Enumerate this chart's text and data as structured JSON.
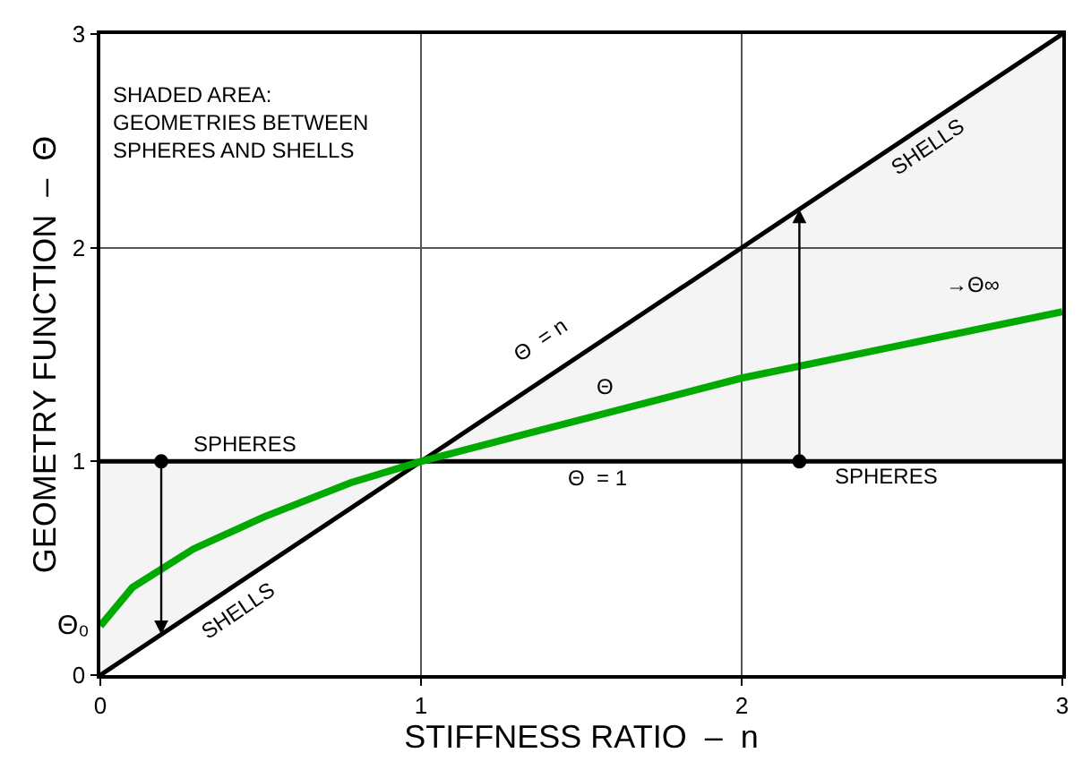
{
  "chart_data": {
    "type": "line",
    "xlabel": "STIFFNESS RATIO  –  n",
    "ylabel": "GEOMETRY FUNCTION  –  Θ",
    "xlim": [
      0,
      3
    ],
    "ylim": [
      0,
      3
    ],
    "xticks": [
      0,
      1,
      2,
      3
    ],
    "yticks": [
      0,
      1,
      2,
      3
    ],
    "grid": true,
    "series": [
      {
        "color": "#000000",
        "x": [
          0,
          1,
          3
        ],
        "values": [
          0,
          1,
          3
        ],
        "lower": [
          0,
          1,
          1
        ],
        "upper": [
          1,
          1,
          3
        ]
      },
      {
        "color": "#000000",
        "x": [
          0,
          3
        ],
        "values": [
          1,
          1
        ]
      },
      {
        "color": "#00aa00",
        "x": [
          0,
          0.1,
          0.29,
          0.51,
          0.78,
          1,
          1.33,
          2,
          3
        ],
        "values": [
          0.23,
          0.41,
          0.59,
          0.74,
          0.9,
          1,
          1.13,
          1.39,
          1.7
        ]
      },
      {
        "type": "scatter",
        "marker": "circle",
        "color": "#000000",
        "x": [
          0.19,
          2.18
        ],
        "values": [
          1,
          1
        ]
      }
    ],
    "annotations": [
      "SHADED AREA:\nGEOMETRIES BETWEEN\nSPHERES AND SHELLS",
      "SPHERES",
      "SHELLS",
      "SHELLS",
      "Θ  = n",
      "Θ",
      "Θ  = 1",
      "SPHERES",
      "→Θ∞",
      "Θ₀"
    ]
  }
}
